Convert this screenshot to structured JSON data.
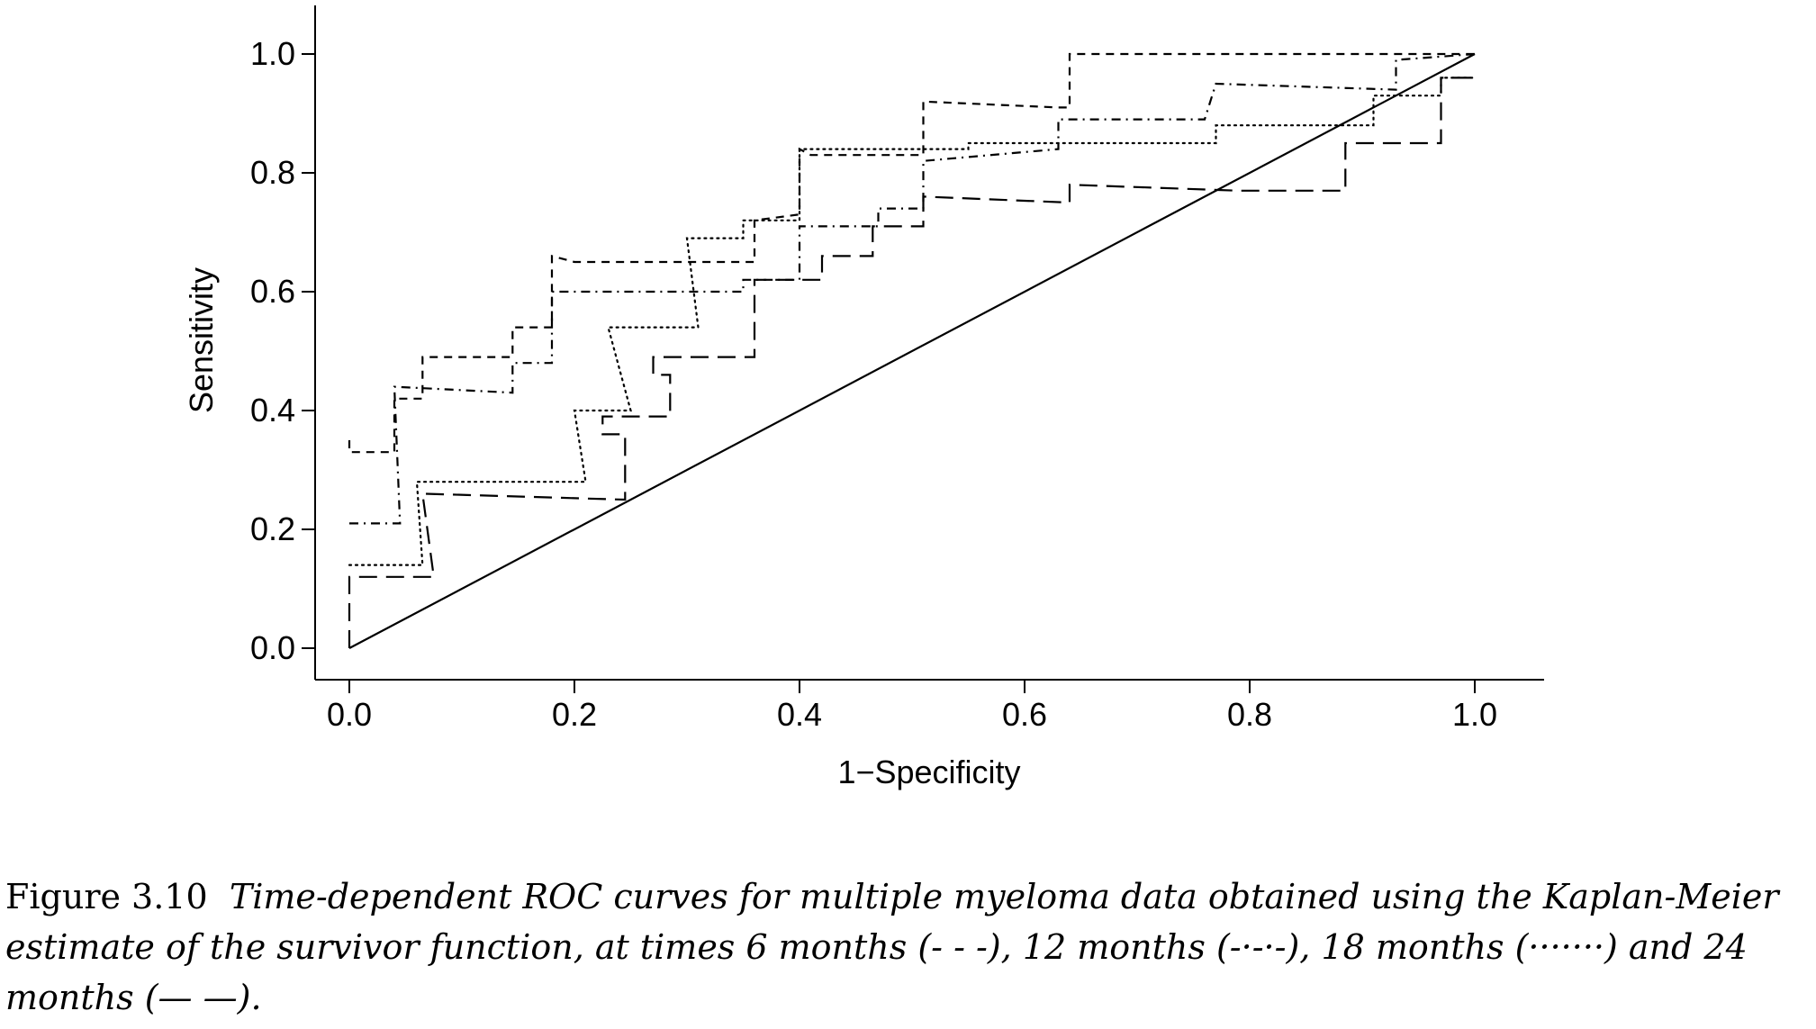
{
  "figure": {
    "label": "Figure 3.10",
    "caption": "Time-dependent ROC curves for multiple myeloma data obtained using the Kaplan-Meier estimate of the survivor function, at times 6 months (- - -), 12 months (-·-·-), 18 months (·······) and 24 months (— —)."
  },
  "chart_data": {
    "type": "line",
    "xlabel": "1−Specificity",
    "ylabel": "Sensitivity",
    "xlim": [
      0.0,
      1.0
    ],
    "ylim": [
      0.0,
      1.0
    ],
    "xticks": [
      "0.0",
      "0.2",
      "0.4",
      "0.6",
      "0.8",
      "1.0"
    ],
    "yticks": [
      "0.0",
      "0.2",
      "0.4",
      "0.6",
      "0.8",
      "1.0"
    ],
    "grid": false,
    "reference_line": {
      "x": [
        0,
        1
      ],
      "y": [
        0,
        1
      ]
    },
    "series": [
      {
        "name": "6 months",
        "style": "dashed",
        "points": [
          [
            0,
            0.35
          ],
          [
            0,
            0.33
          ],
          [
            0.04,
            0.33
          ],
          [
            0.04,
            0.42
          ],
          [
            0.065,
            0.42
          ],
          [
            0.065,
            0.49
          ],
          [
            0.145,
            0.49
          ],
          [
            0.145,
            0.54
          ],
          [
            0.18,
            0.54
          ],
          [
            0.18,
            0.66
          ],
          [
            0.2,
            0.65
          ],
          [
            0.36,
            0.65
          ],
          [
            0.36,
            0.72
          ],
          [
            0.4,
            0.73
          ],
          [
            0.4,
            0.84
          ],
          [
            0.41,
            0.83
          ],
          [
            0.51,
            0.83
          ],
          [
            0.51,
            0.92
          ],
          [
            0.63,
            0.91
          ],
          [
            0.64,
            0.91
          ],
          [
            0.64,
            1.0
          ],
          [
            0.94,
            1.0
          ],
          [
            1.0,
            1.0
          ]
        ]
      },
      {
        "name": "12 months",
        "style": "dotdash",
        "points": [
          [
            0,
            0.21
          ],
          [
            0.045,
            0.21
          ],
          [
            0.04,
            0.44
          ],
          [
            0.145,
            0.43
          ],
          [
            0.145,
            0.48
          ],
          [
            0.18,
            0.48
          ],
          [
            0.18,
            0.6
          ],
          [
            0.35,
            0.6
          ],
          [
            0.35,
            0.62
          ],
          [
            0.4,
            0.62
          ],
          [
            0.4,
            0.71
          ],
          [
            0.47,
            0.71
          ],
          [
            0.47,
            0.74
          ],
          [
            0.51,
            0.74
          ],
          [
            0.51,
            0.82
          ],
          [
            0.63,
            0.84
          ],
          [
            0.63,
            0.89
          ],
          [
            0.76,
            0.89
          ],
          [
            0.77,
            0.95
          ],
          [
            0.93,
            0.94
          ],
          [
            0.93,
            0.99
          ],
          [
            1.0,
            1.0
          ]
        ]
      },
      {
        "name": "18 months",
        "style": "dotted",
        "points": [
          [
            0,
            0.14
          ],
          [
            0.065,
            0.14
          ],
          [
            0.06,
            0.28
          ],
          [
            0.21,
            0.28
          ],
          [
            0.2,
            0.4
          ],
          [
            0.25,
            0.4
          ],
          [
            0.23,
            0.54
          ],
          [
            0.31,
            0.54
          ],
          [
            0.3,
            0.69
          ],
          [
            0.35,
            0.69
          ],
          [
            0.35,
            0.72
          ],
          [
            0.4,
            0.72
          ],
          [
            0.4,
            0.84
          ],
          [
            0.55,
            0.84
          ],
          [
            0.55,
            0.85
          ],
          [
            0.77,
            0.85
          ],
          [
            0.77,
            0.88
          ],
          [
            0.91,
            0.88
          ],
          [
            0.91,
            0.93
          ],
          [
            0.97,
            0.93
          ],
          [
            0.97,
            0.96
          ],
          [
            1.0,
            0.96
          ]
        ]
      },
      {
        "name": "24 months",
        "style": "longdash",
        "points": [
          [
            0,
            0.0
          ],
          [
            0,
            0.12
          ],
          [
            0.075,
            0.12
          ],
          [
            0.065,
            0.26
          ],
          [
            0.245,
            0.25
          ],
          [
            0.245,
            0.36
          ],
          [
            0.225,
            0.36
          ],
          [
            0.225,
            0.39
          ],
          [
            0.285,
            0.39
          ],
          [
            0.285,
            0.46
          ],
          [
            0.27,
            0.46
          ],
          [
            0.27,
            0.49
          ],
          [
            0.36,
            0.49
          ],
          [
            0.36,
            0.62
          ],
          [
            0.42,
            0.62
          ],
          [
            0.42,
            0.66
          ],
          [
            0.465,
            0.66
          ],
          [
            0.465,
            0.71
          ],
          [
            0.51,
            0.71
          ],
          [
            0.51,
            0.76
          ],
          [
            0.64,
            0.75
          ],
          [
            0.64,
            0.78
          ],
          [
            0.79,
            0.77
          ],
          [
            0.885,
            0.77
          ],
          [
            0.885,
            0.85
          ],
          [
            0.97,
            0.85
          ],
          [
            0.97,
            0.96
          ],
          [
            1.0,
            0.96
          ]
        ]
      }
    ]
  }
}
